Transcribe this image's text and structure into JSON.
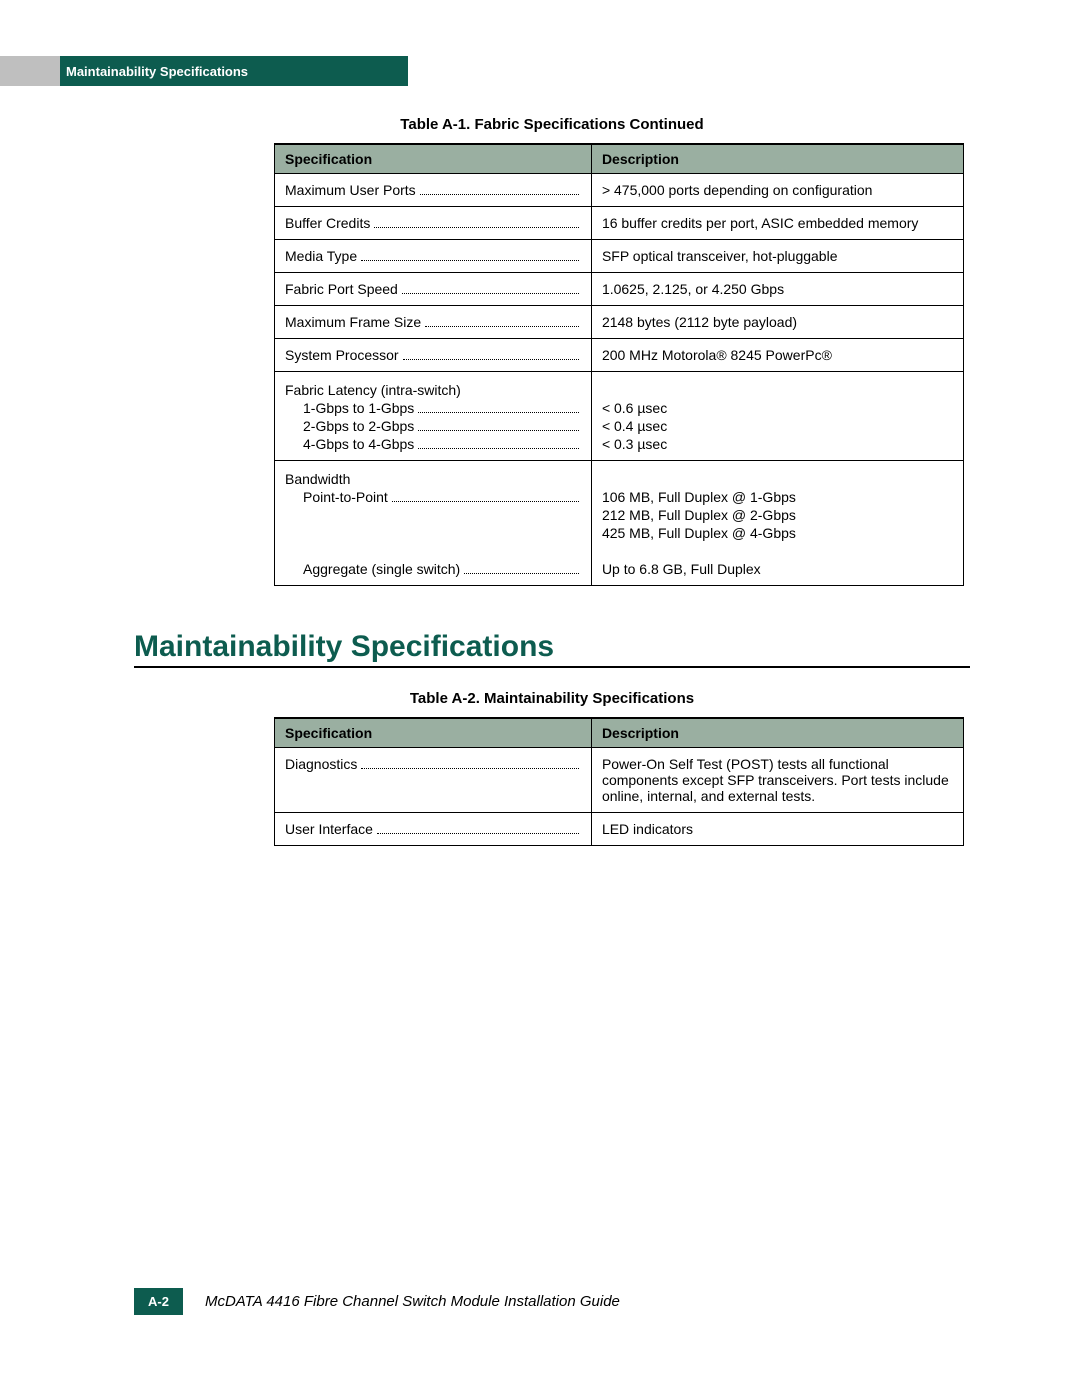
{
  "header": {
    "tab_label": "Maintainability Specifications"
  },
  "table1": {
    "caption": "Table A-1.   Fabric Specifications Continued",
    "columns": {
      "spec": "Specification",
      "desc": "Description"
    },
    "header_bg": "#9aafa1",
    "rows": [
      {
        "spec_lines": [
          {
            "label": "Maximum User Ports",
            "dots": true
          }
        ],
        "desc_lines": [
          "> 475,000 ports depending on configuration"
        ]
      },
      {
        "spec_lines": [
          {
            "label": "Buffer Credits",
            "dots": true
          }
        ],
        "desc_lines": [
          "16 buffer credits per port, ASIC embedded memory"
        ]
      },
      {
        "spec_lines": [
          {
            "label": "Media Type",
            "dots": true
          }
        ],
        "desc_lines": [
          "SFP optical transceiver, hot-pluggable"
        ]
      },
      {
        "spec_lines": [
          {
            "label": "Fabric Port Speed",
            "dots": true
          }
        ],
        "desc_lines": [
          "1.0625, 2.125, or 4.250 Gbps"
        ]
      },
      {
        "spec_lines": [
          {
            "label": "Maximum Frame Size",
            "dots": true
          }
        ],
        "desc_lines": [
          "2148 bytes (2112 byte payload)"
        ]
      },
      {
        "spec_lines": [
          {
            "label": "System Processor",
            "dots": true
          }
        ],
        "desc_lines": [
          "200 MHz Motorola® 8245 PowerPc®"
        ]
      },
      {
        "spec_lines": [
          {
            "label": "Fabric Latency (intra-switch)",
            "dots": false
          },
          {
            "label": "1-Gbps to 1-Gbps",
            "dots": true,
            "indent": true
          },
          {
            "label": "2-Gbps to 2-Gbps",
            "dots": true,
            "indent": true
          },
          {
            "label": "4-Gbps to 4-Gbps",
            "dots": true,
            "indent": true
          }
        ],
        "desc_lines": [
          "",
          "< 0.6 µsec",
          "< 0.4 µsec",
          "< 0.3 µsec"
        ]
      },
      {
        "spec_lines": [
          {
            "label": "Bandwidth",
            "dots": false
          },
          {
            "label": "Point-to-Point",
            "dots": true,
            "indent": true
          },
          {
            "label": "",
            "dots": false
          },
          {
            "label": "",
            "dots": false
          },
          {
            "label": "",
            "dots": false
          },
          {
            "label": "Aggregate (single switch)",
            "dots": true,
            "indent": true
          }
        ],
        "desc_lines": [
          "",
          "106 MB, Full Duplex @ 1-Gbps",
          "212 MB, Full Duplex @ 2-Gbps",
          "425 MB, Full Duplex @ 4-Gbps",
          "",
          "Up to 6.8 GB, Full Duplex"
        ]
      }
    ]
  },
  "section_heading": "Maintainability Specifications",
  "table2": {
    "caption": "Table A-2.   Maintainability Specifications",
    "columns": {
      "spec": "Specification",
      "desc": "Description"
    },
    "header_bg": "#9aafa1",
    "rows": [
      {
        "spec_lines": [
          {
            "label": "Diagnostics",
            "dots": true
          }
        ],
        "desc_lines": [
          "Power-On Self Test (POST) tests all functional components except SFP transceivers. Port tests include online, internal, and external tests."
        ]
      },
      {
        "spec_lines": [
          {
            "label": "User Interface",
            "dots": true
          }
        ],
        "desc_lines": [
          "LED indicators"
        ]
      }
    ]
  },
  "footer": {
    "page_number": "A-2",
    "doc_title": "McDATA 4416 Fibre Channel Switch Module Installation Guide"
  },
  "colors": {
    "brand_green": "#0d5c4f",
    "table_header_bg": "#9aafa1",
    "gray_stub": "#bfbfbf"
  }
}
